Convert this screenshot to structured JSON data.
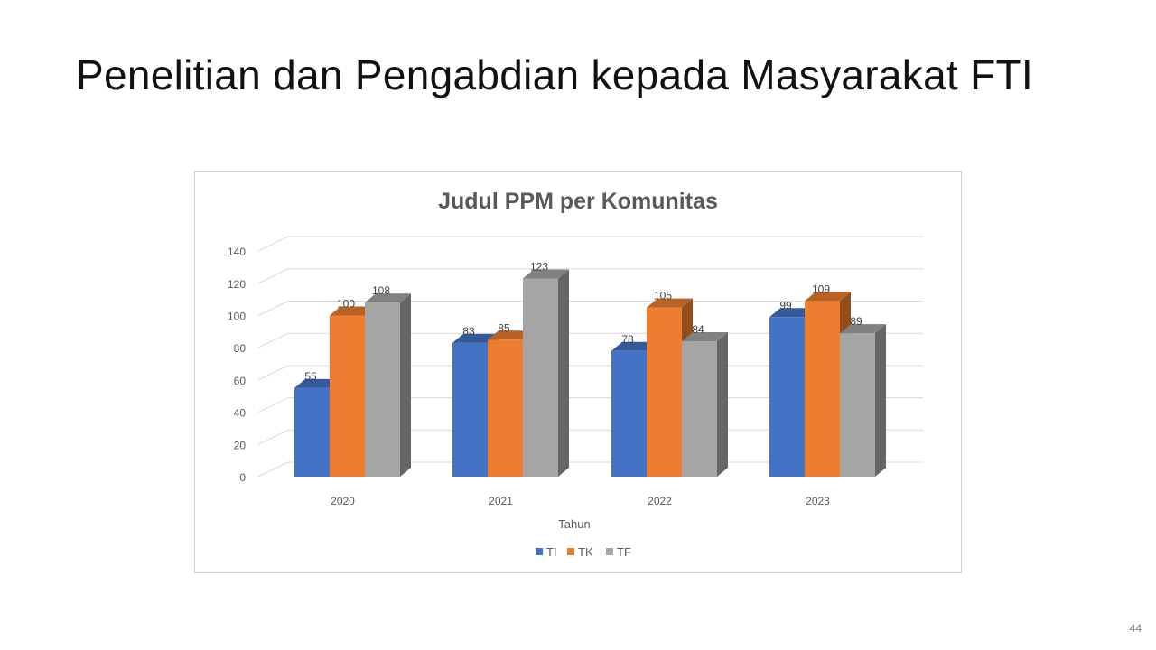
{
  "slide": {
    "title": "Penelitian dan Pengabdian kepada Masyarakat FTI",
    "page_number": "44"
  },
  "chart_data": {
    "type": "bar",
    "title": "Judul PPM per Komunitas",
    "xlabel": "Tahun",
    "ylabel": "",
    "categories": [
      "2020",
      "2021",
      "2022",
      "2023"
    ],
    "series": [
      {
        "name": "TI",
        "values": [
          55,
          83,
          78,
          99
        ],
        "color": "#4472C4"
      },
      {
        "name": "TK",
        "values": [
          100,
          85,
          105,
          109
        ],
        "color": "#ED7D31"
      },
      {
        "name": "TF",
        "values": [
          108,
          123,
          84,
          89
        ],
        "color": "#A5A5A5"
      }
    ],
    "ylim": [
      0,
      140
    ],
    "yticks": [
      0,
      20,
      40,
      60,
      80,
      100,
      120,
      140
    ],
    "grid": true,
    "legend_position": "bottom",
    "style": "3d-clustered-column"
  }
}
